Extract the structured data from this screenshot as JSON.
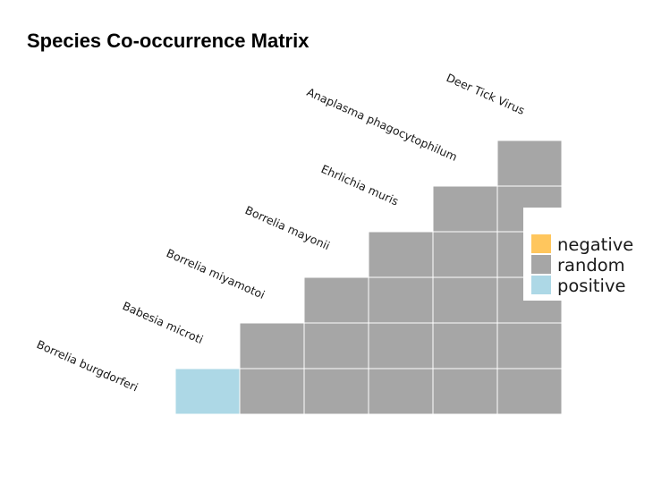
{
  "chart_data": {
    "type": "heatmap",
    "title": "Species Co-occurrence Matrix",
    "species": [
      "Borrelia burgdorferi",
      "Babesia microti",
      "Borrelia miyamotoi",
      "Borrelia mayonii",
      "Ehrlichia muris",
      "Anaplasma phagocytophilum",
      "Deer Tick Virus"
    ],
    "pairs": [
      {
        "sp1": "Borrelia burgdorferi",
        "sp2": "Babesia microti",
        "association": "positive"
      },
      {
        "sp1": "Borrelia burgdorferi",
        "sp2": "Borrelia miyamotoi",
        "association": "random"
      },
      {
        "sp1": "Borrelia burgdorferi",
        "sp2": "Borrelia mayonii",
        "association": "random"
      },
      {
        "sp1": "Borrelia burgdorferi",
        "sp2": "Ehrlichia muris",
        "association": "random"
      },
      {
        "sp1": "Borrelia burgdorferi",
        "sp2": "Anaplasma phagocytophilum",
        "association": "random"
      },
      {
        "sp1": "Borrelia burgdorferi",
        "sp2": "Deer Tick Virus",
        "association": "random"
      },
      {
        "sp1": "Babesia microti",
        "sp2": "Borrelia miyamotoi",
        "association": "random"
      },
      {
        "sp1": "Babesia microti",
        "sp2": "Borrelia mayonii",
        "association": "random"
      },
      {
        "sp1": "Babesia microti",
        "sp2": "Ehrlichia muris",
        "association": "random"
      },
      {
        "sp1": "Babesia microti",
        "sp2": "Anaplasma phagocytophilum",
        "association": "random"
      },
      {
        "sp1": "Babesia microti",
        "sp2": "Deer Tick Virus",
        "association": "random"
      },
      {
        "sp1": "Borrelia miyamotoi",
        "sp2": "Borrelia mayonii",
        "association": "random"
      },
      {
        "sp1": "Borrelia miyamotoi",
        "sp2": "Ehrlichia muris",
        "association": "random"
      },
      {
        "sp1": "Borrelia miyamotoi",
        "sp2": "Anaplasma phagocytophilum",
        "association": "random"
      },
      {
        "sp1": "Borrelia miyamotoi",
        "sp2": "Deer Tick Virus",
        "association": "random"
      },
      {
        "sp1": "Borrelia mayonii",
        "sp2": "Ehrlichia muris",
        "association": "random"
      },
      {
        "sp1": "Borrelia mayonii",
        "sp2": "Anaplasma phagocytophilum",
        "association": "random"
      },
      {
        "sp1": "Borrelia mayonii",
        "sp2": "Deer Tick Virus",
        "association": "random"
      },
      {
        "sp1": "Ehrlichia muris",
        "sp2": "Anaplasma phagocytophilum",
        "association": "random"
      },
      {
        "sp1": "Ehrlichia muris",
        "sp2": "Deer Tick Virus",
        "association": "random"
      },
      {
        "sp1": "Anaplasma phagocytophilum",
        "sp2": "Deer Tick Virus",
        "association": "random"
      }
    ],
    "legend": [
      {
        "label": "negative",
        "color": "#FFC65D"
      },
      {
        "label": "random",
        "color": "#A6A6A6"
      },
      {
        "label": "positive",
        "color": "#ADD8E6"
      }
    ],
    "legend_position": "right"
  }
}
